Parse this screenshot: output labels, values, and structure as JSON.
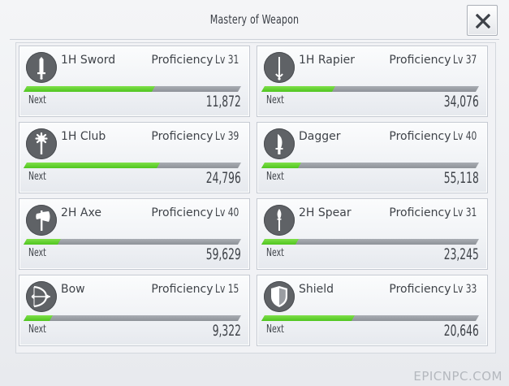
{
  "window": {
    "title": "Mastery of Weapon",
    "close_symbol": "✕"
  },
  "labels": {
    "proficiency": "Proficiency",
    "level_prefix": "Lv",
    "next": "Next"
  },
  "weapons": [
    {
      "name": "1H Sword",
      "level": "31",
      "next": "11,872",
      "progress": 0.6,
      "icon": "sword-icon"
    },
    {
      "name": "1H Rapier",
      "level": "37",
      "next": "34,076",
      "progress": 0.33,
      "icon": "rapier-icon"
    },
    {
      "name": "1H Club",
      "level": "39",
      "next": "24,796",
      "progress": 0.62,
      "icon": "club-icon"
    },
    {
      "name": "Dagger",
      "level": "40",
      "next": "55,118",
      "progress": 0.17,
      "icon": "dagger-icon"
    },
    {
      "name": "2H Axe",
      "level": "40",
      "next": "59,629",
      "progress": 0.16,
      "icon": "axe-icon"
    },
    {
      "name": "2H Spear",
      "level": "31",
      "next": "23,245",
      "progress": 0.16,
      "icon": "spear-icon"
    },
    {
      "name": "Bow",
      "level": "15",
      "next": "9,322",
      "progress": 0.12,
      "icon": "bow-icon"
    },
    {
      "name": "Shield",
      "level": "33",
      "next": "20,646",
      "progress": 0.42,
      "icon": "shield-icon"
    }
  ],
  "watermark": "EPICNPC.COM",
  "colors": {
    "progress_fill": "#5ccd2a",
    "progress_track": "#9a9ea4",
    "icon_bg": "#5f6266",
    "text": "#3f4349"
  }
}
